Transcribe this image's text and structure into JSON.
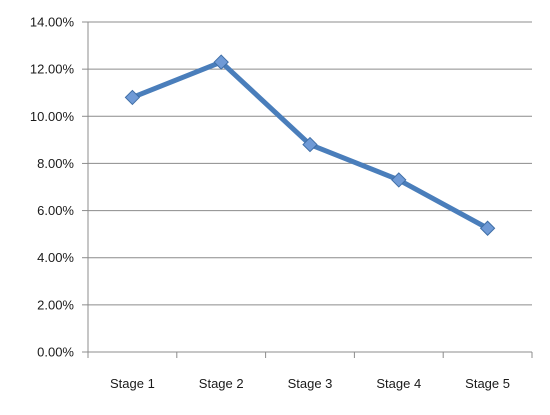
{
  "chart_data": {
    "type": "line",
    "categories": [
      "Stage 1",
      "Stage 2",
      "Stage 3",
      "Stage 4",
      "Stage 5"
    ],
    "series": [
      {
        "values": [
          10.8,
          12.3,
          8.8,
          7.3,
          5.25
        ]
      }
    ],
    "ylim": [
      0,
      14
    ],
    "ytick_step": 2,
    "ytick_labels": [
      "0.00%",
      "2.00%",
      "4.00%",
      "6.00%",
      "8.00%",
      "10.00%",
      "12.00%",
      "14.00%"
    ],
    "grid": true,
    "legend": false,
    "colors": {
      "line": "#4a7ebb",
      "marker_fill": "#6f9ad6",
      "marker_stroke": "#3f6ea6",
      "grid": "#8c8c8c",
      "axis": "#8c8c8c"
    }
  }
}
